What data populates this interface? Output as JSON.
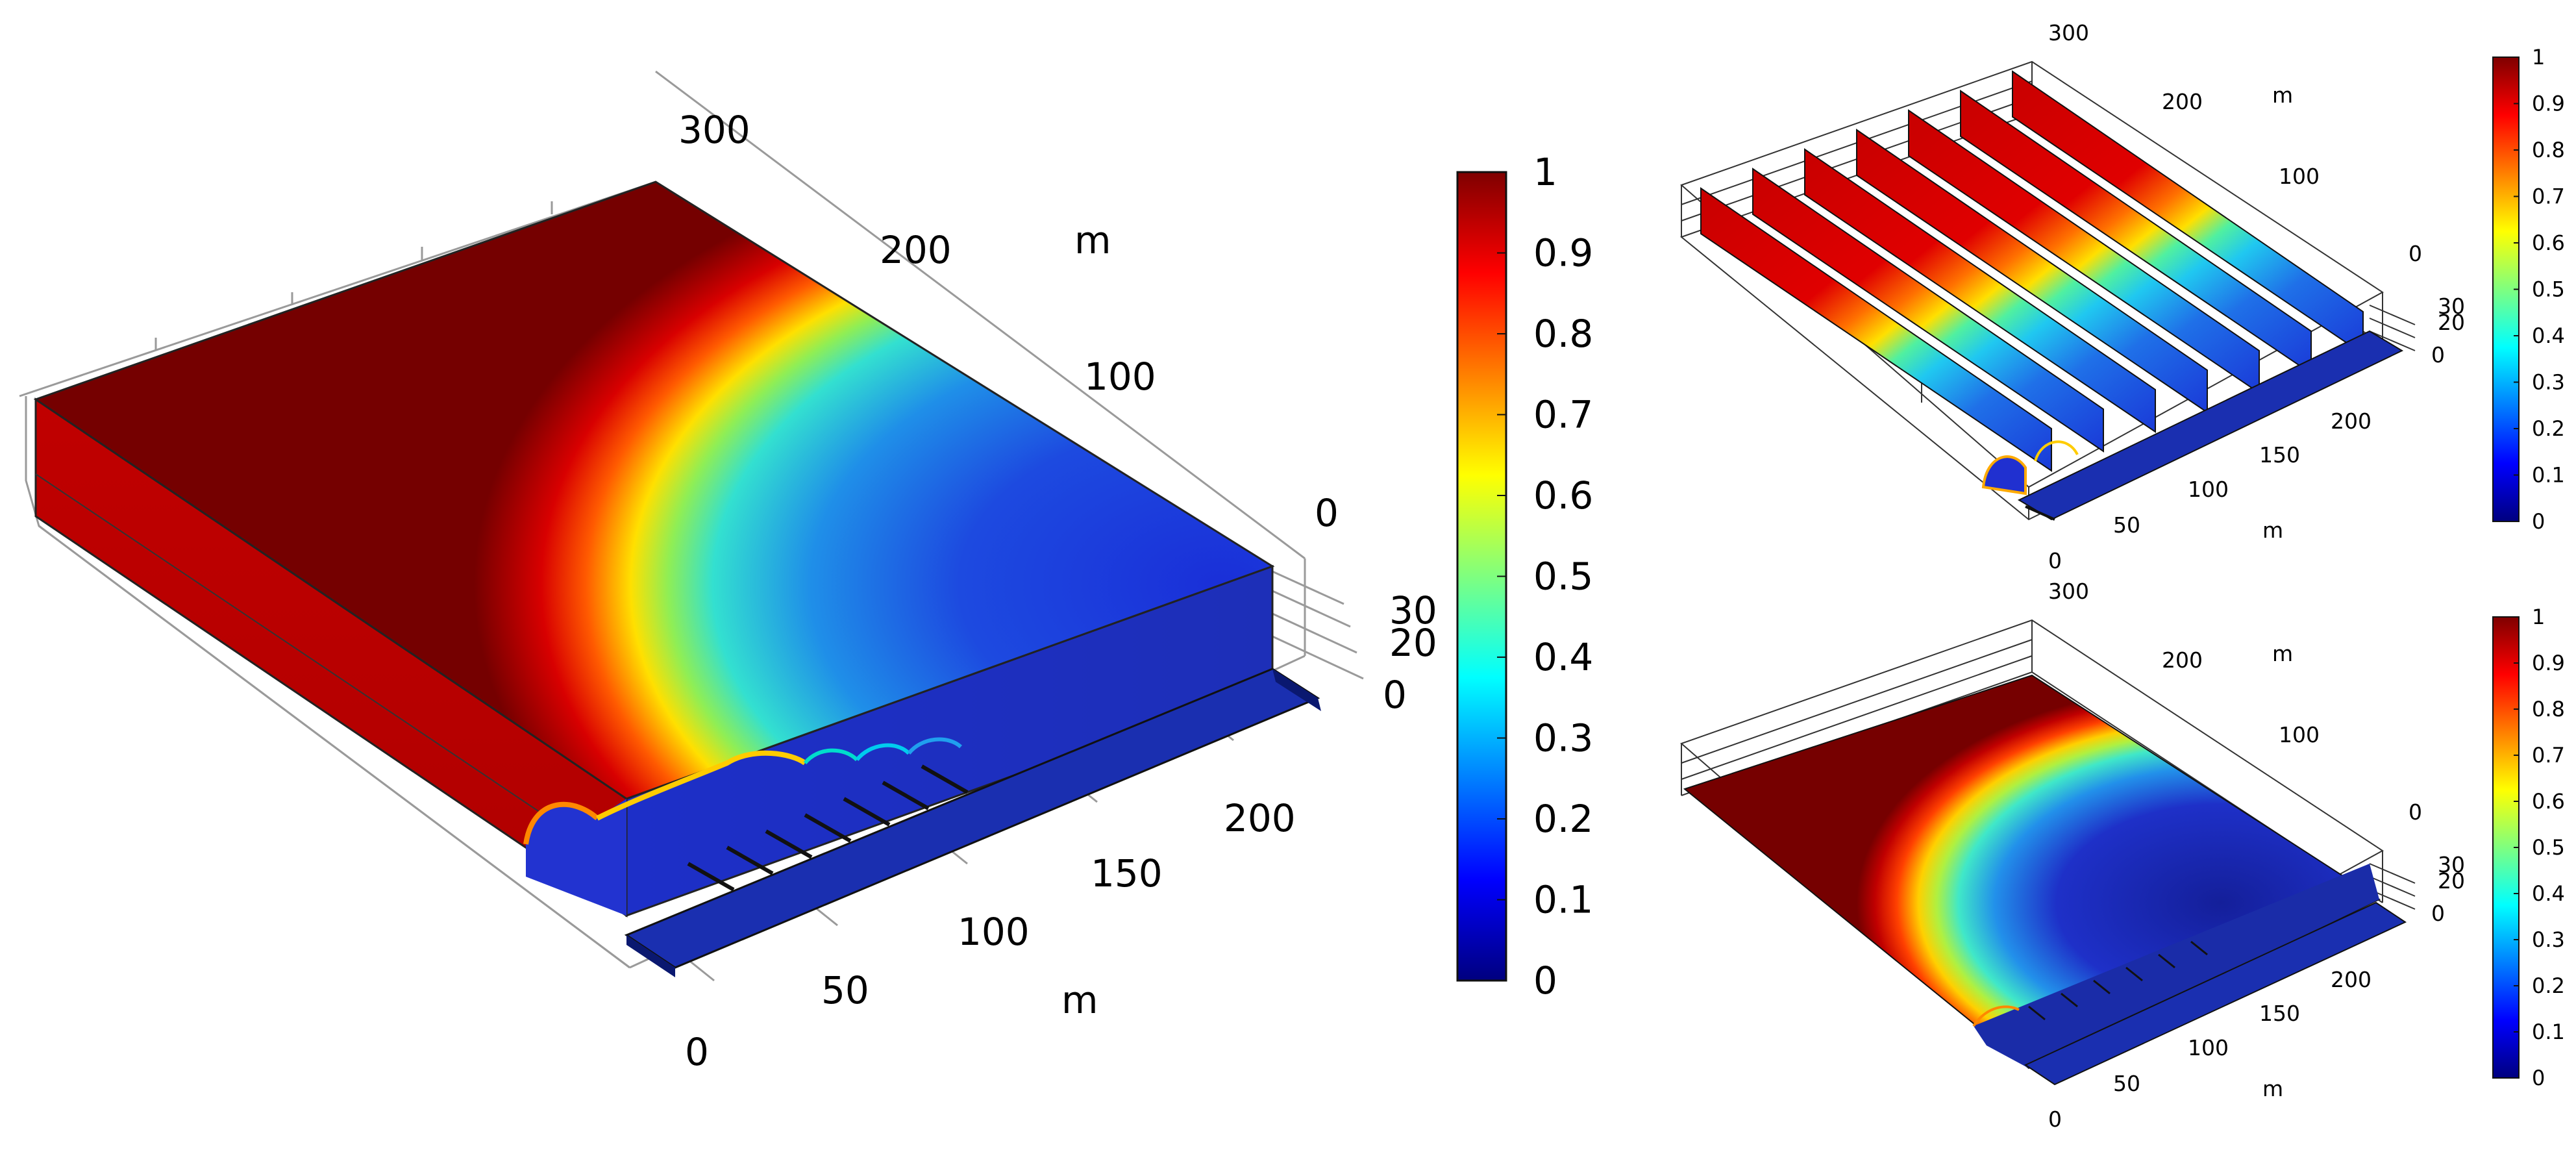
{
  "colormap": {
    "stops": [
      "#00007f",
      "#0000ff",
      "#007fff",
      "#00ffff",
      "#7fff7f",
      "#ffff00",
      "#ff7f00",
      "#ff0000",
      "#7f0000"
    ]
  },
  "panels": [
    {
      "id": "main",
      "axis_unit_top": "m",
      "axis_unit_bottom": "m",
      "top_ticks": [
        "300",
        "200",
        "100",
        "0"
      ],
      "bottom_ticks": [
        "0",
        "50",
        "100",
        "150",
        "200"
      ],
      "z_ticks": [
        "30",
        "20",
        "0"
      ]
    },
    {
      "id": "slices",
      "axis_unit_top": "m",
      "axis_unit_bottom": "m",
      "top_ticks": [
        "300",
        "200",
        "100",
        "0"
      ],
      "bottom_ticks": [
        "0",
        "50",
        "100",
        "150",
        "200"
      ],
      "z_ticks": [
        "30",
        "20",
        "0"
      ]
    },
    {
      "id": "surface",
      "axis_unit_top": "m",
      "axis_unit_bottom": "m",
      "top_ticks": [
        "300",
        "200",
        "100",
        "0"
      ],
      "bottom_ticks": [
        "0",
        "50",
        "100",
        "150",
        "200"
      ],
      "z_ticks": [
        "30",
        "20",
        "0"
      ]
    }
  ],
  "colorbars": [
    {
      "id": "main",
      "ticks": [
        "1",
        "0.9",
        "0.8",
        "0.7",
        "0.6",
        "0.5",
        "0.4",
        "0.3",
        "0.2",
        "0.1",
        "0"
      ]
    },
    {
      "id": "slices",
      "ticks": [
        "1",
        "0.9",
        "0.8",
        "0.7",
        "0.6",
        "0.5",
        "0.4",
        "0.3",
        "0.2",
        "0.1",
        "0"
      ]
    },
    {
      "id": "surface",
      "ticks": [
        "1",
        "0.9",
        "0.8",
        "0.7",
        "0.6",
        "0.5",
        "0.4",
        "0.3",
        "0.2",
        "0.1",
        "0"
      ]
    }
  ]
}
